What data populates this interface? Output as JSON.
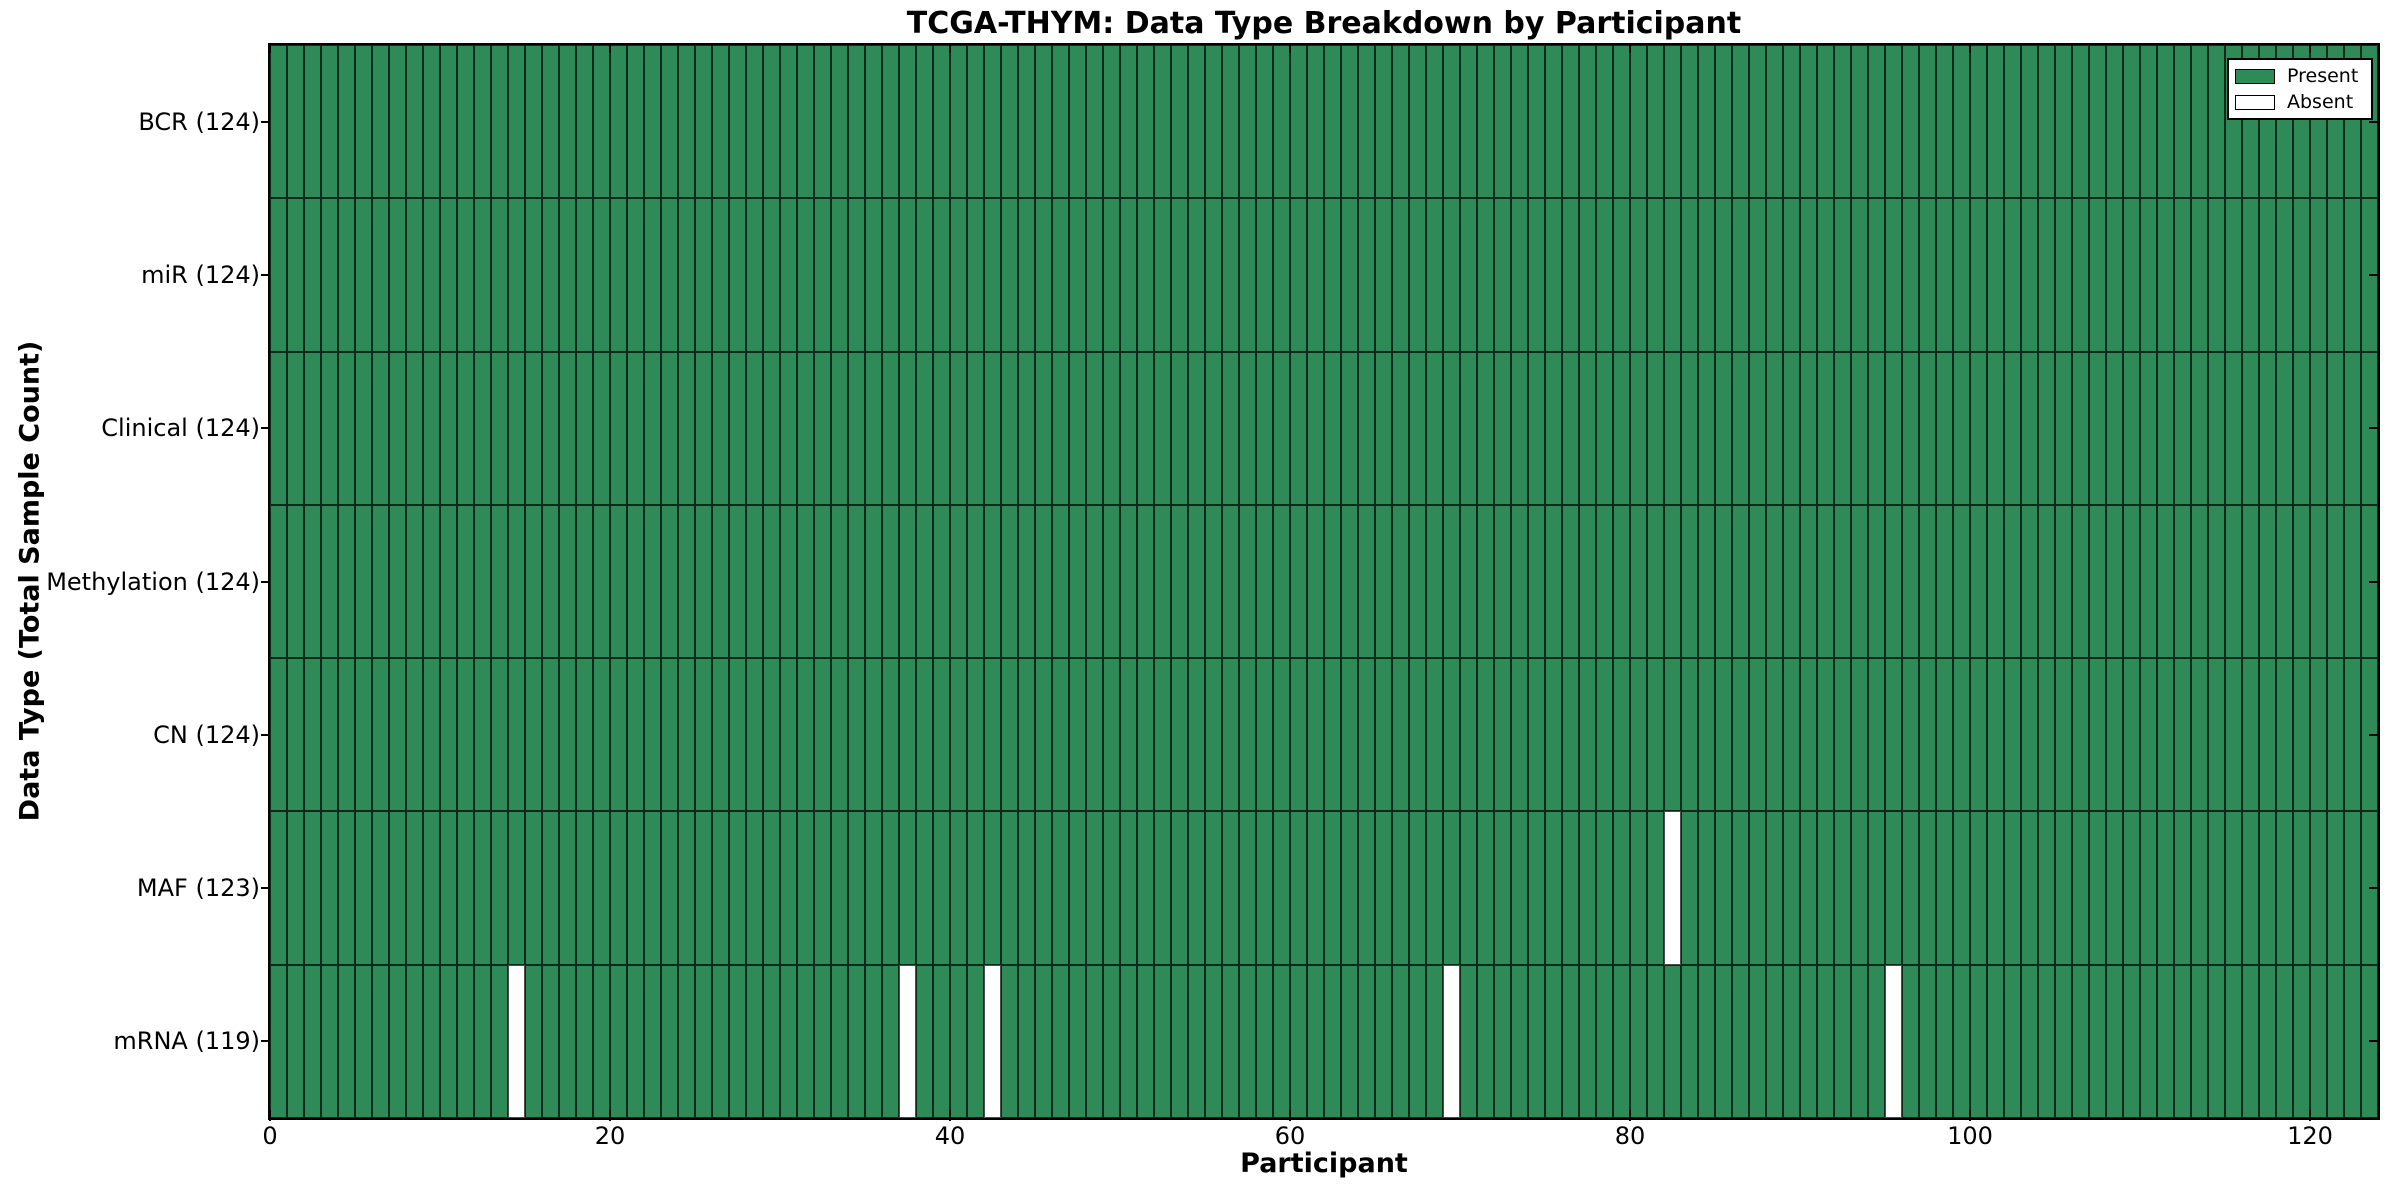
{
  "chart_data": {
    "type": "heatmap",
    "title": "TCGA-THYM: Data Type Breakdown by Participant",
    "xlabel": "Participant",
    "ylabel": "Data Type (Total Sample Count)",
    "n_participants": 124,
    "xlim": [
      0,
      124
    ],
    "x_ticks": [
      0,
      20,
      40,
      60,
      80,
      100,
      120
    ],
    "grid": true,
    "rows": [
      {
        "data_type": "BCR",
        "label": "BCR (124)",
        "present_count": 124,
        "absent_participants": []
      },
      {
        "data_type": "miR",
        "label": "miR (124)",
        "present_count": 124,
        "absent_participants": []
      },
      {
        "data_type": "Clinical",
        "label": "Clinical (124)",
        "present_count": 124,
        "absent_participants": []
      },
      {
        "data_type": "Methylation",
        "label": "Methylation (124)",
        "present_count": 124,
        "absent_participants": []
      },
      {
        "data_type": "CN",
        "label": "CN (124)",
        "present_count": 124,
        "absent_participants": []
      },
      {
        "data_type": "MAF",
        "label": "MAF (123)",
        "present_count": 123,
        "absent_participants": [
          82
        ]
      },
      {
        "data_type": "mRNA",
        "label": "mRNA (119)",
        "present_count": 119,
        "absent_participants": [
          14,
          37,
          42,
          69,
          95
        ]
      }
    ],
    "colors": {
      "present": "#2E8B57",
      "absent": "#FFFFFF"
    },
    "legend": {
      "position": "upper right",
      "entries": [
        {
          "label": "Present",
          "color": "#2E8B57"
        },
        {
          "label": "Absent",
          "color": "#FFFFFF"
        }
      ]
    }
  }
}
